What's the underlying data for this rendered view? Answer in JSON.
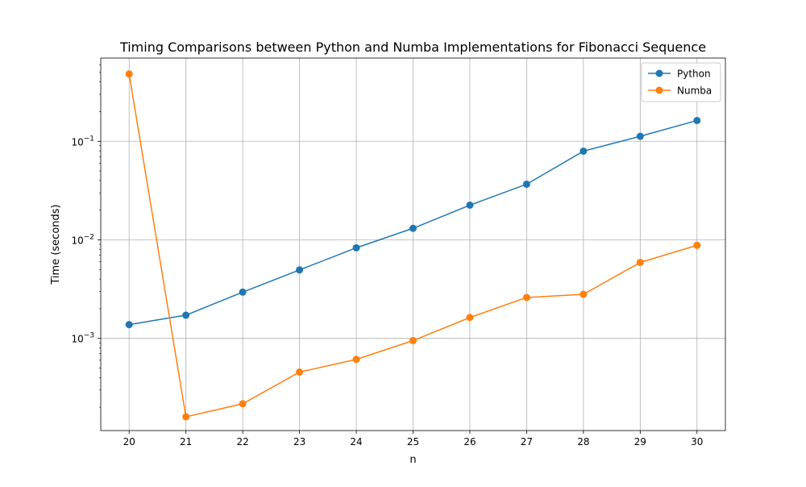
{
  "chart_data": {
    "type": "line",
    "title": "Timing Comparisons between Python and Numba Implementations for Fibonacci Sequence",
    "xlabel": "n",
    "ylabel": "Time (seconds)",
    "yscale": "log",
    "x": [
      20,
      21,
      22,
      23,
      24,
      25,
      26,
      27,
      28,
      29,
      30
    ],
    "xlim": [
      19.5,
      30.5
    ],
    "ylim": [
      0.000116,
      0.7
    ],
    "grid": true,
    "legend_position": "upper right",
    "series": [
      {
        "name": "Python",
        "color": "#1f77b4",
        "marker": "circle",
        "values": [
          0.00138,
          0.00172,
          0.00295,
          0.00495,
          0.0083,
          0.0131,
          0.0225,
          0.0367,
          0.0795,
          0.1125,
          0.1627
        ]
      },
      {
        "name": "Numba",
        "color": "#ff7f0e",
        "marker": "circle",
        "values": [
          0.482,
          0.00016,
          0.000217,
          0.000455,
          0.000612,
          0.00095,
          0.00163,
          0.0026,
          0.0028,
          0.0059,
          0.0088
        ]
      }
    ],
    "x_tick_labels": [
      "20",
      "21",
      "22",
      "23",
      "24",
      "25",
      "26",
      "27",
      "28",
      "29",
      "30"
    ],
    "y_ticks": [
      {
        "value": 0.001,
        "base": "10",
        "exp": "−3"
      },
      {
        "value": 0.01,
        "base": "10",
        "exp": "−2"
      },
      {
        "value": 0.1,
        "base": "10",
        "exp": "−1"
      }
    ]
  }
}
